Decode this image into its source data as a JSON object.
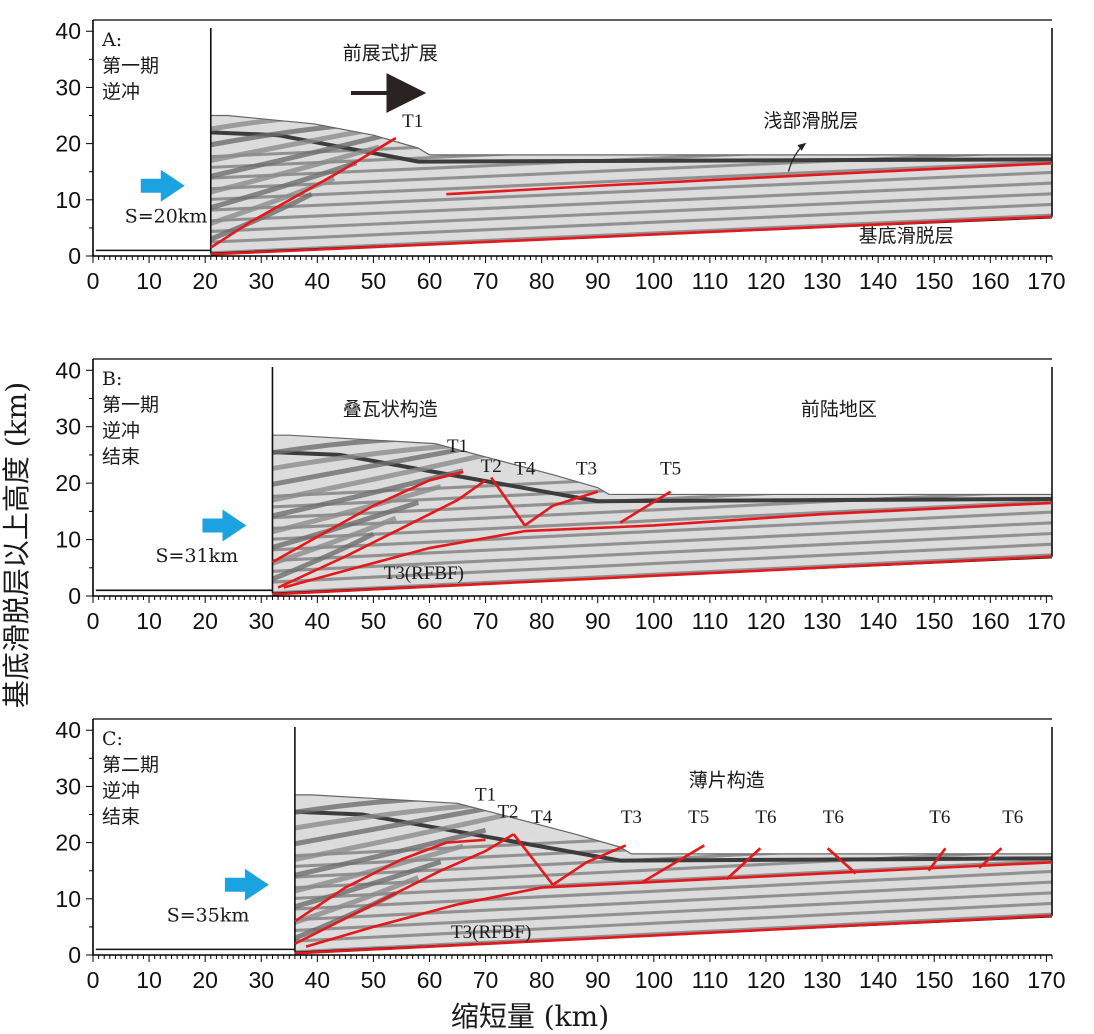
{
  "y_axis_title": "基底滑脱层以上高度 (km)",
  "x_axis_title": "缩短量 (km)",
  "x_ticks": [
    0,
    10,
    20,
    30,
    40,
    50,
    60,
    70,
    80,
    90,
    100,
    110,
    120,
    130,
    140,
    150,
    160,
    170
  ],
  "y_ticks": [
    0,
    10,
    20,
    30,
    40
  ],
  "colors": {
    "fault": "#e3191b",
    "light": "#dcdcdc",
    "mid": "#8c8c8c",
    "dark": "#3c3c3c",
    "arrow_blue": "#1aa3e0",
    "arrow_dark": "#2b2222"
  },
  "panels": [
    {
      "id": "A",
      "title_lines": [
        "A:",
        "第一期",
        "逆冲"
      ],
      "shortening_label": "S=20km",
      "backstop_km": 21,
      "wedge_top_km": 25,
      "wedge_front_km": 58,
      "flat_top_km": 18,
      "labels": [
        {
          "text": "前展式扩展",
          "x": 53,
          "y": 35
        },
        {
          "text": "T1",
          "x": 57,
          "y": 23
        },
        {
          "text": "浅部滑脱层",
          "x": 128,
          "y": 23
        },
        {
          "text": "基底滑脱层",
          "x": 145,
          "y": 2.5
        }
      ],
      "faults": [
        [
          [
            21,
            1.5
          ],
          [
            28,
            6
          ],
          [
            36,
            10.5
          ],
          [
            44,
            15
          ],
          [
            54,
            21
          ]
        ],
        [
          [
            63,
            11
          ],
          [
            90,
            12.5
          ],
          [
            120,
            14
          ],
          [
            150,
            15.5
          ],
          [
            171,
            16.5
          ]
        ],
        [
          [
            21,
            0.3
          ],
          [
            171,
            7
          ]
        ]
      ],
      "front_arrow": [
        [
          46,
          29
        ],
        [
          58,
          29
        ]
      ]
    },
    {
      "id": "B",
      "title_lines": [
        "B:",
        "第一期",
        "逆冲",
        "结束"
      ],
      "shortening_label": "S=31km",
      "backstop_km": 32,
      "wedge_top_km": 28.5,
      "wedge_front_km": 90,
      "flat_top_km": 18,
      "labels": [
        {
          "text": "叠瓦状构造",
          "x": 53,
          "y": 32
        },
        {
          "text": "前陆地区",
          "x": 133,
          "y": 32
        },
        {
          "text": "T1",
          "x": 65,
          "y": 25.5
        },
        {
          "text": "T2",
          "x": 71,
          "y": 22
        },
        {
          "text": "T4",
          "x": 77,
          "y": 21.5
        },
        {
          "text": "T3",
          "x": 88,
          "y": 21.5
        },
        {
          "text": "T5",
          "x": 103,
          "y": 21.5
        },
        {
          "text": "T3(RFBF)",
          "x": 59,
          "y": 3
        }
      ],
      "faults": [
        [
          [
            32,
            6
          ],
          [
            40,
            10.5
          ],
          [
            50,
            16
          ],
          [
            60,
            20.5
          ],
          [
            66,
            22
          ]
        ],
        [
          [
            33,
            1.5
          ],
          [
            45,
            7
          ],
          [
            55,
            12
          ],
          [
            65,
            17
          ],
          [
            70,
            20.5
          ]
        ],
        [
          [
            34,
            1.5
          ],
          [
            45,
            4.5
          ],
          [
            60,
            8.5
          ],
          [
            77,
            11.5
          ],
          [
            100,
            12.5
          ],
          [
            130,
            14.5
          ],
          [
            171,
            16.5
          ]
        ],
        [
          [
            71,
            21
          ],
          [
            77,
            12.5
          ]
        ],
        [
          [
            77,
            12.5
          ],
          [
            82,
            16
          ],
          [
            90,
            18.5
          ]
        ],
        [
          [
            94,
            13
          ],
          [
            103,
            18.5
          ]
        ],
        [
          [
            32,
            0.3
          ],
          [
            171,
            7
          ]
        ]
      ]
    },
    {
      "id": "C",
      "title_lines": [
        "C:",
        "第二期",
        "逆冲",
        "结束"
      ],
      "shortening_label": "S=35km",
      "backstop_km": 36,
      "wedge_top_km": 28.5,
      "wedge_front_km": 94,
      "flat_top_km": 18,
      "labels": [
        {
          "text": "薄片构造",
          "x": 113,
          "y": 30
        },
        {
          "text": "T1",
          "x": 70,
          "y": 27.5
        },
        {
          "text": "T2",
          "x": 74,
          "y": 24.5
        },
        {
          "text": "T4",
          "x": 80,
          "y": 23.5
        },
        {
          "text": "T3",
          "x": 96,
          "y": 23.5
        },
        {
          "text": "T5",
          "x": 108,
          "y": 23.5
        },
        {
          "text": "T6",
          "x": 120,
          "y": 23.5
        },
        {
          "text": "T6",
          "x": 132,
          "y": 23.5
        },
        {
          "text": "T6",
          "x": 151,
          "y": 23.5
        },
        {
          "text": "T6",
          "x": 164,
          "y": 23.5
        },
        {
          "text": "T3(RFBF)",
          "x": 71,
          "y": 3
        }
      ],
      "faults": [
        [
          [
            36,
            6
          ],
          [
            45,
            12
          ],
          [
            55,
            17
          ],
          [
            63,
            20
          ],
          [
            70,
            20.5
          ]
        ],
        [
          [
            36,
            2
          ],
          [
            50,
            9
          ],
          [
            62,
            15
          ],
          [
            70,
            18.5
          ],
          [
            75,
            21.5
          ]
        ],
        [
          [
            38,
            1.5
          ],
          [
            50,
            5
          ],
          [
            65,
            9
          ],
          [
            80,
            12
          ],
          [
            100,
            13
          ],
          [
            130,
            14.5
          ],
          [
            171,
            16.5
          ]
        ],
        [
          [
            75,
            21.5
          ],
          [
            82,
            12.5
          ]
        ],
        [
          [
            82,
            12.5
          ],
          [
            88,
            16.5
          ],
          [
            95,
            19.5
          ]
        ],
        [
          [
            98,
            13
          ],
          [
            109,
            19.5
          ]
        ],
        [
          [
            113,
            13.5
          ],
          [
            119,
            19
          ]
        ],
        [
          [
            131,
            19
          ],
          [
            136,
            14.5
          ]
        ],
        [
          [
            149,
            15
          ],
          [
            152,
            19
          ]
        ],
        [
          [
            158,
            15.5
          ],
          [
            162,
            19
          ]
        ],
        [
          [
            36,
            0.3
          ],
          [
            171,
            7
          ]
        ]
      ]
    }
  ]
}
